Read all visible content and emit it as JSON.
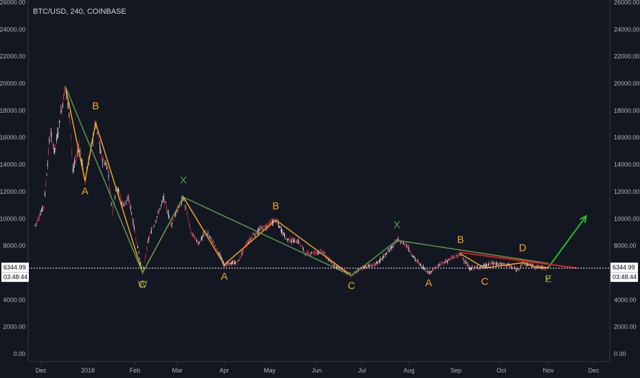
{
  "title": "BTC/USD, 240, COINBASE",
  "chart_data": {
    "type": "line",
    "symbol": "BTC/USD",
    "interval": "240",
    "exchange": "COINBASE",
    "ylim": [
      0,
      26000
    ],
    "y_ticks": [
      "0.00",
      "2000.00",
      "4000.00",
      "6000.00",
      "8000.00",
      "10000.00",
      "12000.00",
      "14000.00",
      "16000.00",
      "18000.00",
      "20000.00",
      "22000.00",
      "24000.00",
      "26000.00"
    ],
    "x_ticks": [
      "Dec",
      "2018",
      "Feb",
      "Mar",
      "Apr",
      "May",
      "Jun",
      "Jul",
      "Aug",
      "Sep",
      "Oct",
      "Nov",
      "Dec"
    ],
    "last_price": "6344.99",
    "countdown": "03:48:44",
    "price_series": [
      {
        "t": "2017-11-27",
        "v": 9500
      },
      {
        "t": "2017-12-03",
        "v": 11000
      },
      {
        "t": "2017-12-07",
        "v": 16500
      },
      {
        "t": "2017-12-10",
        "v": 15000
      },
      {
        "t": "2017-12-13",
        "v": 17000
      },
      {
        "t": "2017-12-17",
        "v": 19800
      },
      {
        "t": "2017-12-20",
        "v": 17500
      },
      {
        "t": "2017-12-22",
        "v": 13500
      },
      {
        "t": "2017-12-26",
        "v": 15500
      },
      {
        "t": "2017-12-30",
        "v": 12800
      },
      {
        "t": "2018-01-02",
        "v": 14500
      },
      {
        "t": "2018-01-06",
        "v": 17100
      },
      {
        "t": "2018-01-10",
        "v": 14500
      },
      {
        "t": "2018-01-14",
        "v": 13800
      },
      {
        "t": "2018-01-17",
        "v": 10500
      },
      {
        "t": "2018-01-20",
        "v": 12500
      },
      {
        "t": "2018-01-24",
        "v": 11000
      },
      {
        "t": "2018-01-28",
        "v": 11500
      },
      {
        "t": "2018-02-01",
        "v": 9000
      },
      {
        "t": "2018-02-06",
        "v": 6000
      },
      {
        "t": "2018-02-10",
        "v": 8500
      },
      {
        "t": "2018-02-15",
        "v": 10000
      },
      {
        "t": "2018-02-20",
        "v": 11500
      },
      {
        "t": "2018-02-25",
        "v": 9600
      },
      {
        "t": "2018-03-05",
        "v": 11600
      },
      {
        "t": "2018-03-10",
        "v": 9000
      },
      {
        "t": "2018-03-15",
        "v": 8200
      },
      {
        "t": "2018-03-20",
        "v": 9000
      },
      {
        "t": "2018-03-25",
        "v": 8200
      },
      {
        "t": "2018-04-01",
        "v": 6600
      },
      {
        "t": "2018-04-10",
        "v": 6800
      },
      {
        "t": "2018-04-15",
        "v": 8000
      },
      {
        "t": "2018-04-20",
        "v": 8800
      },
      {
        "t": "2018-04-25",
        "v": 9200
      },
      {
        "t": "2018-05-05",
        "v": 9900
      },
      {
        "t": "2018-05-12",
        "v": 8500
      },
      {
        "t": "2018-05-20",
        "v": 8300
      },
      {
        "t": "2018-05-25",
        "v": 7400
      },
      {
        "t": "2018-06-05",
        "v": 7600
      },
      {
        "t": "2018-06-10",
        "v": 6800
      },
      {
        "t": "2018-06-15",
        "v": 6400
      },
      {
        "t": "2018-06-24",
        "v": 5800
      },
      {
        "t": "2018-07-01",
        "v": 6400
      },
      {
        "t": "2018-07-10",
        "v": 6600
      },
      {
        "t": "2018-07-17",
        "v": 7400
      },
      {
        "t": "2018-07-24",
        "v": 8400
      },
      {
        "t": "2018-07-30",
        "v": 8100
      },
      {
        "t": "2018-08-05",
        "v": 7000
      },
      {
        "t": "2018-08-14",
        "v": 6000
      },
      {
        "t": "2018-08-20",
        "v": 6500
      },
      {
        "t": "2018-08-28",
        "v": 7000
      },
      {
        "t": "2018-09-04",
        "v": 7400
      },
      {
        "t": "2018-09-10",
        "v": 6300
      },
      {
        "t": "2018-09-20",
        "v": 6500
      },
      {
        "t": "2018-09-25",
        "v": 6700
      },
      {
        "t": "2018-10-05",
        "v": 6600
      },
      {
        "t": "2018-10-11",
        "v": 6200
      },
      {
        "t": "2018-10-15",
        "v": 6700
      },
      {
        "t": "2018-10-25",
        "v": 6450
      },
      {
        "t": "2018-11-01",
        "v": 6345
      }
    ],
    "wave_lines": [
      {
        "name": "bearish-wave-1",
        "color": "#f7a325",
        "points": [
          {
            "t": "2017-12-17",
            "v": 19800
          },
          {
            "t": "2017-12-30",
            "v": 12800
          },
          {
            "t": "2018-01-06",
            "v": 17100
          },
          {
            "t": "2018-02-06",
            "v": 6000
          },
          {
            "t": "2018-03-05",
            "v": 11600
          },
          {
            "t": "2018-04-01",
            "v": 6600
          },
          {
            "t": "2018-05-05",
            "v": 9900
          },
          {
            "t": "2018-06-24",
            "v": 5800
          }
        ]
      },
      {
        "name": "bearish-wave-1-outline",
        "color": "#5b9a4a",
        "points": [
          {
            "t": "2017-12-17",
            "v": 19800
          },
          {
            "t": "2018-02-06",
            "v": 6000
          },
          {
            "t": "2018-03-05",
            "v": 11600
          },
          {
            "t": "2018-06-24",
            "v": 5800
          }
        ]
      },
      {
        "name": "triangle-wave",
        "color": "#f7a325",
        "points": [
          {
            "t": "2018-09-04",
            "v": 7400
          },
          {
            "t": "2018-09-20",
            "v": 6350
          },
          {
            "t": "2018-10-15",
            "v": 6750
          },
          {
            "t": "2018-10-25",
            "v": 6400
          },
          {
            "t": "2018-11-01",
            "v": 6400
          }
        ]
      },
      {
        "name": "triangle-outline",
        "color": "#5b9a4a",
        "points": [
          {
            "t": "2018-06-24",
            "v": 5800
          },
          {
            "t": "2018-07-24",
            "v": 8400
          },
          {
            "t": "2018-11-01",
            "v": 6700
          }
        ]
      },
      {
        "name": "breakout-arrow",
        "color": "#22c22e",
        "points": [
          {
            "t": "2018-11-01",
            "v": 6400
          },
          {
            "t": "2018-11-26",
            "v": 10200
          }
        ]
      }
    ],
    "trendlines": [
      {
        "name": "triangle-upper-trendline",
        "color": "#e01e1e",
        "from": {
          "t": "2018-09-04",
          "v": 7500
        },
        "to": {
          "t": "2018-11-20",
          "v": 6350
        }
      }
    ],
    "wave_labels": [
      {
        "text": "B",
        "t": "2018-01-06",
        "v": 18100,
        "color": "#f7a325"
      },
      {
        "text": "A",
        "t": "2017-12-30",
        "v": 11800,
        "color": "#f7a325"
      },
      {
        "text": "X",
        "t": "2018-03-05",
        "v": 12600,
        "color": "#5b9a4a"
      },
      {
        "text": "W",
        "t": "2018-02-06",
        "v": 4900,
        "color": "#5b9a4a"
      },
      {
        "text": "C",
        "t": "2018-02-06",
        "v": 4900,
        "color": "#f7a325"
      },
      {
        "text": "A",
        "t": "2018-04-01",
        "v": 5500,
        "color": "#f7a325"
      },
      {
        "text": "B",
        "t": "2018-05-05",
        "v": 10700,
        "color": "#f7a325"
      },
      {
        "text": "C",
        "t": "2018-06-24",
        "v": 4800,
        "color": "#f7a325"
      },
      {
        "text": "X",
        "t": "2018-07-24",
        "v": 9300,
        "color": "#5b9a4a"
      },
      {
        "text": "A",
        "t": "2018-08-14",
        "v": 5000,
        "color": "#f7a325"
      },
      {
        "text": "B",
        "t": "2018-09-04",
        "v": 8200,
        "color": "#f7a325"
      },
      {
        "text": "C",
        "t": "2018-09-20",
        "v": 5100,
        "color": "#f7a325"
      },
      {
        "text": "D",
        "t": "2018-10-15",
        "v": 7600,
        "color": "#f7a325"
      },
      {
        "text": "E",
        "t": "2018-11-01",
        "v": 5300,
        "color": "#f7a325"
      },
      {
        "text": "Z",
        "t": "2018-11-01",
        "v": 5300,
        "color": "#5b9a4a"
      }
    ],
    "colors": {
      "background": "#131722",
      "up": "#e8e8e8",
      "down": "#e0334b",
      "price_line": "#ffffff"
    }
  }
}
